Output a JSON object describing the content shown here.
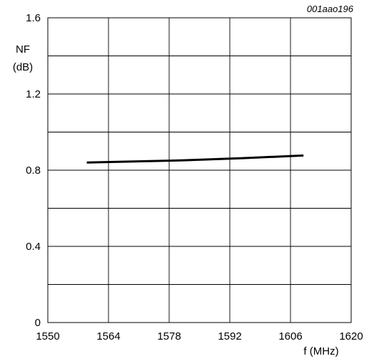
{
  "figure_id": "001aao196",
  "chart_data": {
    "type": "line",
    "xlabel": "f (MHz)",
    "ylabel_lines": [
      "NF",
      "(dB)"
    ],
    "xlim": [
      1550,
      1620
    ],
    "ylim": [
      0,
      1.6
    ],
    "x_ticks": [
      1550,
      1564,
      1578,
      1592,
      1606,
      1620
    ],
    "y_ticks": [
      0,
      0.4,
      0.8,
      1.2,
      1.6
    ],
    "x_grid": [
      1550,
      1564,
      1578,
      1592,
      1606,
      1620
    ],
    "y_grid": [
      0,
      0.2,
      0.4,
      0.6,
      0.8,
      1.0,
      1.2,
      1.4,
      1.6
    ],
    "grid": true,
    "series": [
      {
        "x": [
          1559,
          1580,
          1595,
          1609
        ],
        "y": [
          0.84,
          0.851,
          0.863,
          0.877
        ]
      }
    ]
  }
}
